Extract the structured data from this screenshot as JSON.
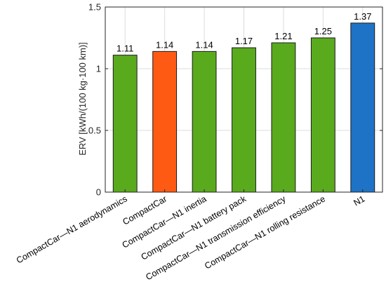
{
  "chart_data": {
    "type": "bar",
    "title": "",
    "xlabel": "",
    "ylabel": "ERV [kWh/(100 kg·100 km)]",
    "ylim": [
      0,
      1.5
    ],
    "yticks": [
      0,
      0.5,
      1,
      1.5
    ],
    "ytick_labels": [
      "0",
      "0.5",
      "1",
      "1.5"
    ],
    "grid": true,
    "categories": [
      "CompactCar—N1 aerodynamics",
      "CompactCar",
      "CompactCar—N1 inertia",
      "CompactCar—N1 battery pack",
      "CompactCar—N1 transmission efficiency",
      "CompactCar—N1 rolling resistance",
      "N1"
    ],
    "values": [
      1.11,
      1.14,
      1.14,
      1.17,
      1.21,
      1.25,
      1.37
    ],
    "value_labels": [
      "1.11",
      "1.14",
      "1.14",
      "1.17",
      "1.21",
      "1.25",
      "1.37"
    ],
    "colors": [
      "#5aaa1e",
      "#ff5a14",
      "#5aaa1e",
      "#5aaa1e",
      "#5aaa1e",
      "#5aaa1e",
      "#1f73c6"
    ],
    "bar_edge_color": "#1a1a1a",
    "grid_color": "#dcdcdc",
    "axis_color": "#262626"
  }
}
